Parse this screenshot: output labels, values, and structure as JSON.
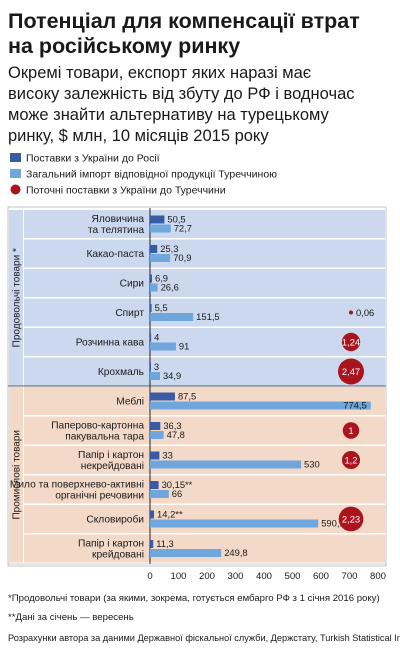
{
  "title_line1": "Потенціал для компенсації втрат",
  "title_line2": "на російському ринку",
  "subtitle_lines": [
    "Окремі товари, експорт яких наразі має",
    "високу залежність від збуту до РФ і водночас",
    "може знайти альтернативу на турецькому",
    "ринку, $ млн, 10 місяців 2015 року"
  ],
  "colors": {
    "dark_bar": "#3b5aa6",
    "light_bar": "#6fa6dc",
    "bubble": "#a9141f",
    "food_band": "#cbd8ee",
    "industrial_band": "#f3d9c8",
    "row_sep": "#ffffff"
  },
  "chart_data": {
    "type": "bar",
    "xlim": [
      0,
      800
    ],
    "xticks": [
      0,
      100,
      200,
      300,
      400,
      500,
      600,
      700,
      800
    ],
    "legend": [
      {
        "key": "ua_ru",
        "label": "Поставки з України до Росії"
      },
      {
        "key": "tr_import",
        "label": "Загальний імпорт відповідної продукції Туреччиною"
      },
      {
        "key": "ua_tr",
        "label": "Поточні поставки з України до Туреччини"
      }
    ],
    "groups": [
      {
        "label": "Продовольчі товари *",
        "start": 0,
        "end": 5
      },
      {
        "label": "Промислові товари",
        "start": 6,
        "end": 11
      }
    ],
    "categories": [
      {
        "label": [
          "Яловичина",
          "та телятина"
        ],
        "ua_ru": 50.5,
        "ua_ru_label": "50,5",
        "tr_import": 72.7,
        "tr_label": "72,7",
        "ua_tr": null,
        "ua_tr_label": ""
      },
      {
        "label": [
          "Какао-паста"
        ],
        "ua_ru": 25.3,
        "ua_ru_label": "25,3",
        "tr_import": 70.9,
        "tr_label": "70,9",
        "ua_tr": null,
        "ua_tr_label": ""
      },
      {
        "label": [
          "Сири"
        ],
        "ua_ru": 6.9,
        "ua_ru_label": "6,9",
        "tr_import": 26.6,
        "tr_label": "26,6",
        "ua_tr": null,
        "ua_tr_label": ""
      },
      {
        "label": [
          "Спирт"
        ],
        "ua_ru": 5.5,
        "ua_ru_label": "5,5",
        "tr_import": 151.5,
        "tr_label": "151,5",
        "ua_tr": 0.06,
        "ua_tr_label": "0,06"
      },
      {
        "label": [
          "Розчинна кава"
        ],
        "ua_ru": 4,
        "ua_ru_label": "4",
        "tr_import": 91,
        "tr_label": "91",
        "ua_tr": 1.24,
        "ua_tr_label": "1,24"
      },
      {
        "label": [
          "Крохмаль"
        ],
        "ua_ru": 3,
        "ua_ru_label": "3",
        "tr_import": 34.9,
        "tr_label": "34,9",
        "ua_tr": 2.47,
        "ua_tr_label": "2,47"
      },
      {
        "label": [
          "Меблі"
        ],
        "ua_ru": 87.5,
        "ua_ru_label": "87,5",
        "tr_import": 774.5,
        "tr_label": "774,5",
        "ua_tr": null,
        "ua_tr_label": ""
      },
      {
        "label": [
          "Паперово-картонна",
          "пакувальна тара"
        ],
        "ua_ru": 36.3,
        "ua_ru_label": "36,3",
        "tr_import": 47.8,
        "tr_label": "47,8",
        "ua_tr": 1,
        "ua_tr_label": "1"
      },
      {
        "label": [
          "Папір і картон",
          "некрейдовані"
        ],
        "ua_ru": 33,
        "ua_ru_label": "33",
        "tr_import": 530,
        "tr_label": "530",
        "ua_tr": 1.2,
        "ua_tr_label": "1,2"
      },
      {
        "label": [
          "Мило та поверхнево-активні",
          "органічні речовини"
        ],
        "ua_ru": 30.15,
        "ua_ru_label": "30,15**",
        "tr_import": 66,
        "tr_label": "66",
        "ua_tr": null,
        "ua_tr_label": ""
      },
      {
        "label": [
          "Скловироби"
        ],
        "ua_ru": 14.2,
        "ua_ru_label": "14,2**",
        "tr_import": 590.15,
        "tr_label": "590,15",
        "ua_tr": 2.23,
        "ua_tr_label": "2,23"
      },
      {
        "label": [
          "Папір і картон",
          "крейдовані"
        ],
        "ua_ru": 11.3,
        "ua_ru_label": "11,3",
        "tr_import": 249.8,
        "tr_label": "249,8",
        "ua_tr": null,
        "ua_tr_label": ""
      }
    ]
  },
  "footnote1": "*Продовольчі товари (за якими, зокрема, готується ембарго РФ з 1 січня 2016 року)",
  "footnote2": "**Дані за січень — вересень",
  "source": "Розрахунки автора за даними Державної фіскальної служби, Держстату, Turkish Statistical Institute"
}
